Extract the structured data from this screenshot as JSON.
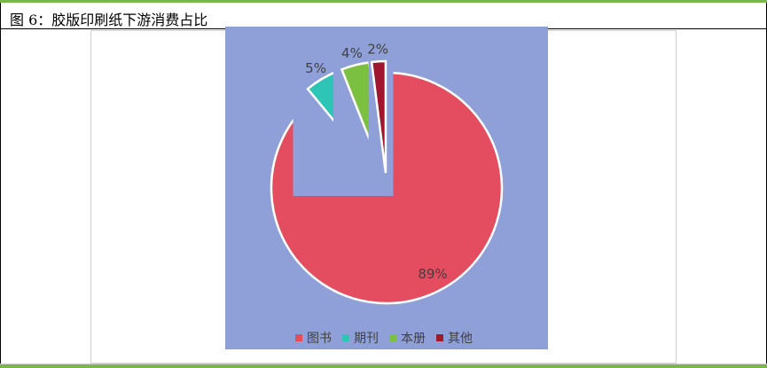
{
  "title": "图 6：胶版印刷纸下游消费占比",
  "chart_data": {
    "type": "pie",
    "categories": [
      "图书",
      "期刊",
      "本册",
      "其他"
    ],
    "values": [
      89,
      5,
      4,
      2
    ],
    "labels": [
      "89%",
      "5%",
      "4%",
      "2%"
    ],
    "colors": [
      "#e44d5f",
      "#2ec4b6",
      "#7bc043",
      "#a0192d"
    ],
    "legend_position": "bottom"
  }
}
